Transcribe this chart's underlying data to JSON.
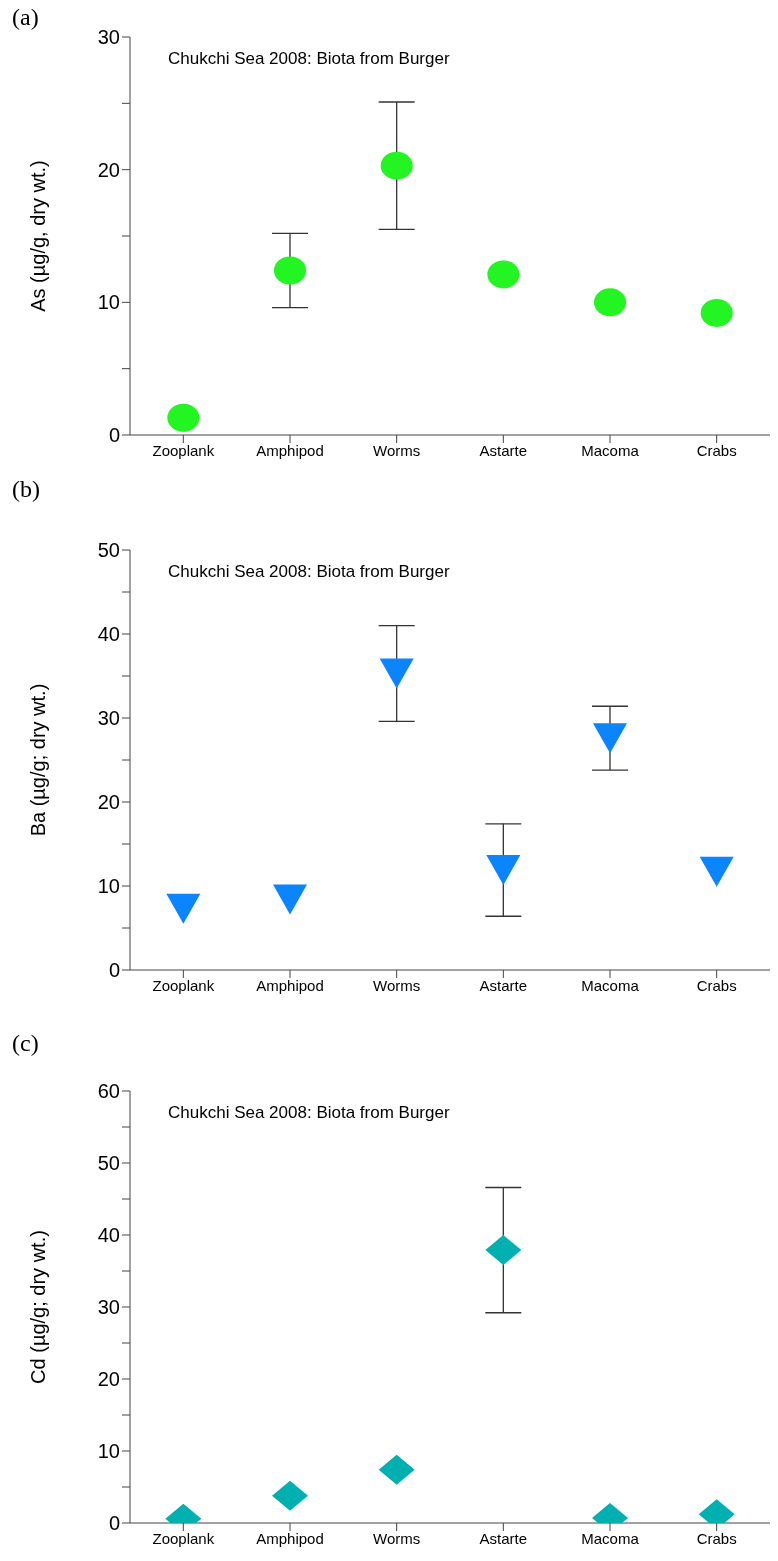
{
  "chart_data": [
    {
      "type": "scatter",
      "title": "(a)",
      "ylabel": "As (µg/g, dry wt.)",
      "annotations": [
        "Chukchi Sea 2008: Biota from Burger"
      ],
      "categories": [
        "Zooplank",
        "Amphipod",
        "Worms",
        "Astarte",
        "Macoma",
        "Crabs"
      ],
      "values": [
        1.3,
        12.4,
        20.3,
        12.1,
        10.0,
        9.2
      ],
      "errors": [
        null,
        2.8,
        4.8,
        null,
        null,
        null
      ],
      "color": "#22f522",
      "marker": "circle",
      "ylim": [
        0,
        30
      ],
      "yticks": [
        0,
        {
          "value": 5,
          "label": null
        },
        10,
        {
          "value": 15,
          "label": null
        },
        20,
        {
          "value": 25,
          "label": null
        },
        30
      ]
    },
    {
      "type": "scatter",
      "title": "(b)",
      "ylabel": "Ba (µg/g; dry wt.)",
      "annotations": [
        "Chukchi Sea 2008: Biota from Burger"
      ],
      "categories": [
        "Zooplank",
        "Amphipod",
        "Worms",
        "Astarte",
        "Macoma",
        "Crabs"
      ],
      "values": [
        7.3,
        8.4,
        35.3,
        11.9,
        27.6,
        11.7
      ],
      "errors": [
        null,
        null,
        5.7,
        5.5,
        3.8,
        null
      ],
      "color": "#0a84ff",
      "marker": "triangle",
      "ylim": [
        0,
        50
      ],
      "yticks": [
        0,
        {
          "value": 5,
          "label": null
        },
        10,
        {
          "value": 15,
          "label": null
        },
        20,
        {
          "value": 25,
          "label": null
        },
        30,
        {
          "value": 35,
          "label": null
        },
        40,
        {
          "value": 45,
          "label": null
        },
        50
      ]
    },
    {
      "type": "scatter",
      "title": "(c)",
      "ylabel": "Cd (µg/g; dry wt.)",
      "annotations": [
        "Chukchi Sea 2008: Biota from Burger"
      ],
      "categories": [
        "Zooplank",
        "Amphipod",
        "Worms",
        "Astarte",
        "Macoma",
        "Crabs"
      ],
      "values": [
        0.6,
        3.8,
        7.4,
        37.9,
        0.7,
        1.2
      ],
      "errors": [
        null,
        null,
        null,
        8.7,
        null,
        null
      ],
      "color": "#00b0b0",
      "marker": "diamond",
      "ylim": [
        0,
        60
      ],
      "yticks": [
        0,
        {
          "value": 5,
          "label": null
        },
        10,
        {
          "value": 15,
          "label": null
        },
        20,
        {
          "value": 25,
          "label": null
        },
        30,
        {
          "value": 35,
          "label": null
        },
        40,
        {
          "value": 45,
          "label": null
        },
        50,
        {
          "value": 55,
          "label": null
        },
        60
      ]
    }
  ]
}
